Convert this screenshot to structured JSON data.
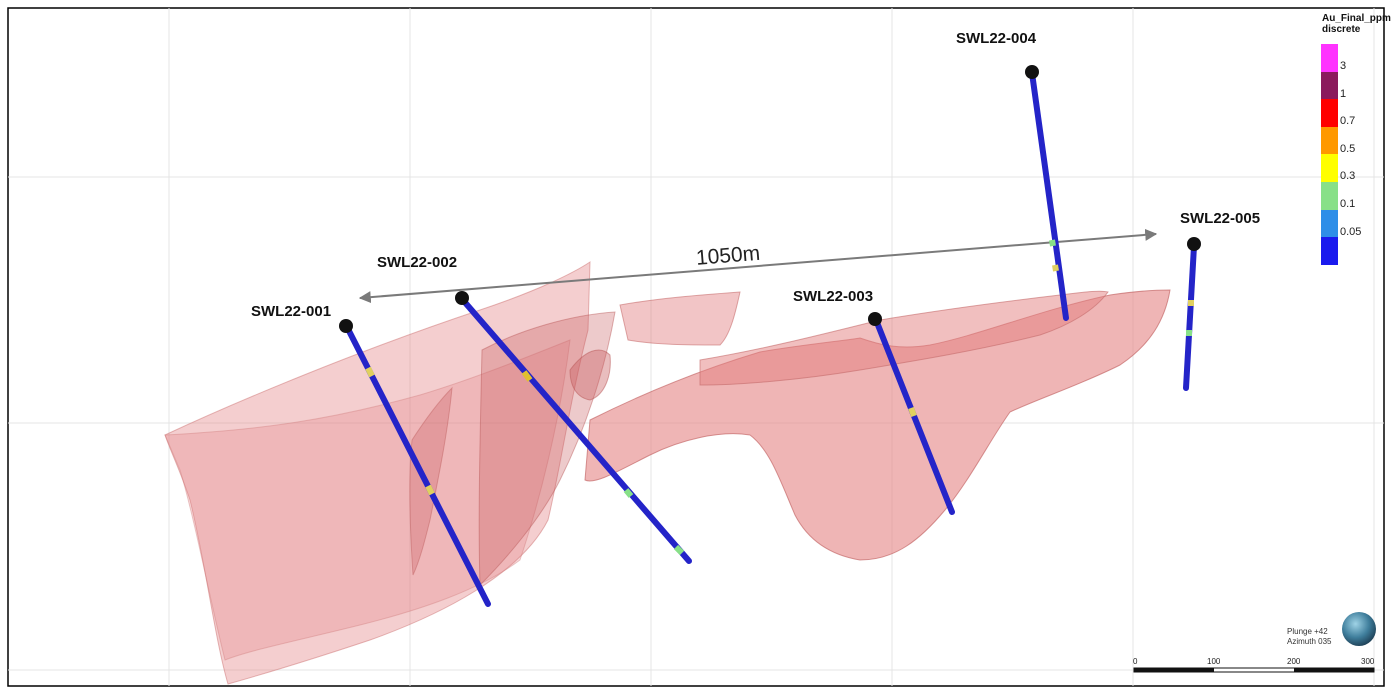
{
  "drillholes": [
    {
      "id": "SWL22-001",
      "label": "SWL22-001"
    },
    {
      "id": "SWL22-002",
      "label": "SWL22-002"
    },
    {
      "id": "SWL22-003",
      "label": "SWL22-003"
    },
    {
      "id": "SWL22-004",
      "label": "SWL22-004"
    },
    {
      "id": "SWL22-005",
      "label": "SWL22-005"
    }
  ],
  "distance_label": "1050m",
  "legend": {
    "title": "Au_Final_ppm discrete",
    "items": [
      {
        "label": "3",
        "color": "#ff33ff"
      },
      {
        "label": "1",
        "color": "#8b1a5c"
      },
      {
        "label": "0.7",
        "color": "#ff0000"
      },
      {
        "label": "0.5",
        "color": "#ff9900"
      },
      {
        "label": "0.3",
        "color": "#ffff00"
      },
      {
        "label": "0.1",
        "color": "#88e088"
      },
      {
        "label": "0.05",
        "color": "#2e8ee8"
      },
      {
        "label": "",
        "color": "#1a1aee"
      }
    ]
  },
  "orientation": {
    "plunge": "Plunge +42",
    "azimuth": "Azimuth 035"
  },
  "scale_bar": [
    "0",
    "100",
    "200",
    "300"
  ],
  "colors": {
    "solid": "#e89a9a",
    "hole": "#2424c8",
    "arrow": "#7a7a7a"
  }
}
